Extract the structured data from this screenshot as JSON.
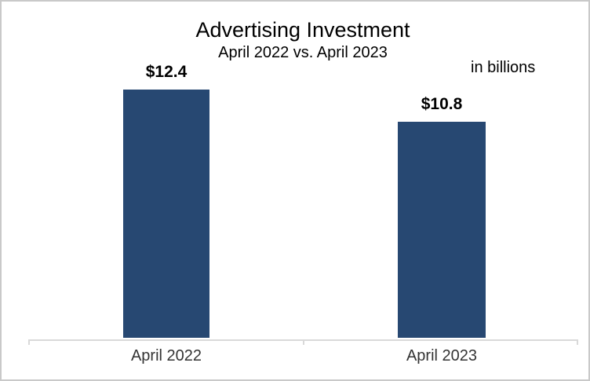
{
  "window": {
    "background": "#ffffff",
    "frame_border_color": "#c9c9c9"
  },
  "chart_data": {
    "type": "bar",
    "title": "Advertising Investment",
    "subtitle": "April 2022 vs. April 2023",
    "unit_note": "in billions",
    "categories": [
      "April 2022",
      "April 2023"
    ],
    "values": [
      12.4,
      10.8
    ],
    "value_labels": [
      "$12.4",
      "$10.8"
    ],
    "series_name": "Advertising Investment",
    "xlabel": "",
    "ylabel": "",
    "ylim": [
      0,
      12.4
    ],
    "grid": false,
    "legend": false,
    "value_axis_hidden": true,
    "bar_color": "#274872",
    "axis_color": "#d9d9d9"
  }
}
